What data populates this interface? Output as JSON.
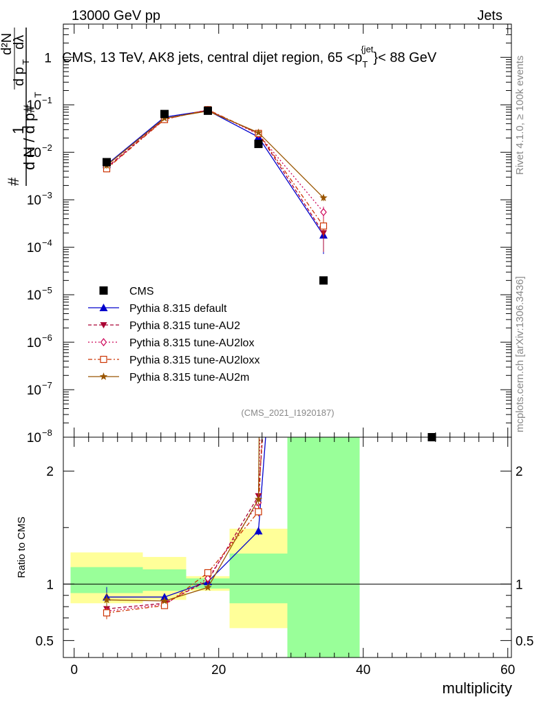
{
  "header": {
    "left": "13000 GeV pp",
    "right": "Jets"
  },
  "side_labels": {
    "rivet": "Rivet 4.1.0, ≥ 100k events",
    "mcplots": "mcplots.cern.ch [arXiv:1306.3436]"
  },
  "watermark": "(CMS_2021_I1920187)",
  "chart_data": {
    "type": "line",
    "title": "CMS, 13 TeV, AK8 jets, central dijet region, 65 <p",
    "title_sub": "T",
    "title_sup": "{jet",
    "title_close": "}",
    "title_tail": "< 88 GeV",
    "ylabel_main": "d²N / d p_T dλ",
    "ylabel_parts": {
      "one": "1",
      "hash": "#",
      "dN": "d N / d p",
      "T": "T",
      "d2N": "d²N",
      "dpT": "d p",
      "dl": "dλ"
    },
    "ratio_ylabel": "Ratio to CMS",
    "xlabel": "multiplicity",
    "xlim": [
      -1.5,
      60.5
    ],
    "ylim_main_log10": [
      -8,
      0.7
    ],
    "ylim_ratio": [
      0.35,
      2.3
    ],
    "x_ticks": [
      0,
      20,
      40,
      60
    ],
    "main_y_ticks": [
      {
        "exp": 0,
        "label": "1"
      },
      {
        "exp": -1,
        "label": "10",
        "sup": "−1"
      },
      {
        "exp": -2,
        "label": "10",
        "sup": "−2"
      },
      {
        "exp": -3,
        "label": "10",
        "sup": "−3"
      },
      {
        "exp": -4,
        "label": "10",
        "sup": "−4"
      },
      {
        "exp": -5,
        "label": "10",
        "sup": "−5"
      },
      {
        "exp": -6,
        "label": "10",
        "sup": "−6"
      },
      {
        "exp": -7,
        "label": "10",
        "sup": "−7"
      },
      {
        "exp": -8,
        "label": "10",
        "sup": "−8"
      }
    ],
    "ratio_y_ticks": [
      {
        "value": 0.5,
        "label": "0.5"
      },
      {
        "value": 1,
        "label": "1"
      },
      {
        "value": 2,
        "label": "2"
      }
    ],
    "data": {
      "name": "CMS",
      "x": [
        4.5,
        12.5,
        18.5,
        25.5,
        34.5,
        49.5
      ],
      "y": [
        0.0062,
        0.064,
        0.075,
        0.015,
        2e-05,
        1e-08
      ]
    },
    "bands": [
      {
        "x0": -0.5,
        "x1": 9.5,
        "stat": [
          0.92,
          1.15
        ],
        "syst": [
          0.83,
          1.28
        ]
      },
      {
        "x0": 9.5,
        "x1": 15.5,
        "stat": [
          0.94,
          1.13
        ],
        "syst": [
          0.86,
          1.24
        ]
      },
      {
        "x0": 15.5,
        "x1": 21.5,
        "stat": [
          0.96,
          1.05
        ],
        "syst": [
          0.94,
          1.07
        ]
      },
      {
        "x0": 21.5,
        "x1": 29.5,
        "stat": [
          0.83,
          1.27
        ],
        "syst": [
          0.61,
          1.49
        ]
      },
      {
        "x0": 29.5,
        "x1": 39.5,
        "stat": [
          0.35,
          2.3
        ],
        "syst": [
          0.35,
          2.3
        ]
      }
    ],
    "series": [
      {
        "name": "Pythia 8.315 default",
        "color": "#0000cc",
        "dash": "",
        "marker": "triangle-up",
        "x": [
          4.5,
          12.5,
          18.5,
          25.5,
          34.5
        ],
        "y": [
          0.0055,
          0.055,
          0.076,
          0.021,
          0.00018
        ],
        "yerr": [
          0.2,
          0.02,
          0.02,
          0.05,
          0.6
        ],
        "ratio": [
          0.885,
          0.885,
          1.02,
          1.47,
          9
        ]
      },
      {
        "name": "Pythia 8.315 tune-AU2",
        "color": "#aa0033",
        "dash": "5,3",
        "marker": "triangle-down",
        "x": [
          4.5,
          12.5,
          18.5,
          25.5,
          34.5
        ],
        "y": [
          0.0048,
          0.05,
          0.077,
          0.025,
          0.0002
        ],
        "yerr": [
          0.15,
          0.02,
          0.02,
          0.05,
          0.6
        ],
        "ratio": [
          0.78,
          0.83,
          1.03,
          1.78,
          10
        ]
      },
      {
        "name": "Pythia 8.315 tune-AU2lox",
        "color": "#cc0055",
        "dash": "2,3",
        "marker": "diamond",
        "x": [
          4.5,
          12.5,
          18.5,
          25.5,
          34.5
        ],
        "y": [
          0.0046,
          0.05,
          0.078,
          0.024,
          0.00055
        ],
        "yerr": [
          0.15,
          0.02,
          0.02,
          0.05,
          0.3
        ],
        "ratio": [
          0.76,
          0.82,
          1.05,
          1.72,
          27
        ]
      },
      {
        "name": "Pythia 8.315 tune-AU2loxx",
        "color": "#cc3300",
        "dash": "6,3,2,3",
        "marker": "square-open",
        "x": [
          4.5,
          12.5,
          18.5,
          25.5,
          34.5
        ],
        "y": [
          0.0045,
          0.049,
          0.079,
          0.025,
          0.00028
        ],
        "yerr": [
          0.15,
          0.02,
          0.02,
          0.05,
          0.4
        ],
        "ratio": [
          0.745,
          0.81,
          1.1,
          1.64,
          14
        ]
      },
      {
        "name": "Pythia 8.315 tune-AU2m",
        "color": "#995500",
        "dash": "",
        "marker": "star",
        "x": [
          4.5,
          12.5,
          18.5,
          25.5,
          34.5
        ],
        "y": [
          0.0053,
          0.052,
          0.074,
          0.026,
          0.0011
        ],
        "yerr": [
          0.15,
          0.02,
          0.02,
          0.05,
          0.15
        ],
        "ratio": [
          0.86,
          0.85,
          0.97,
          1.75,
          55
        ]
      }
    ]
  }
}
